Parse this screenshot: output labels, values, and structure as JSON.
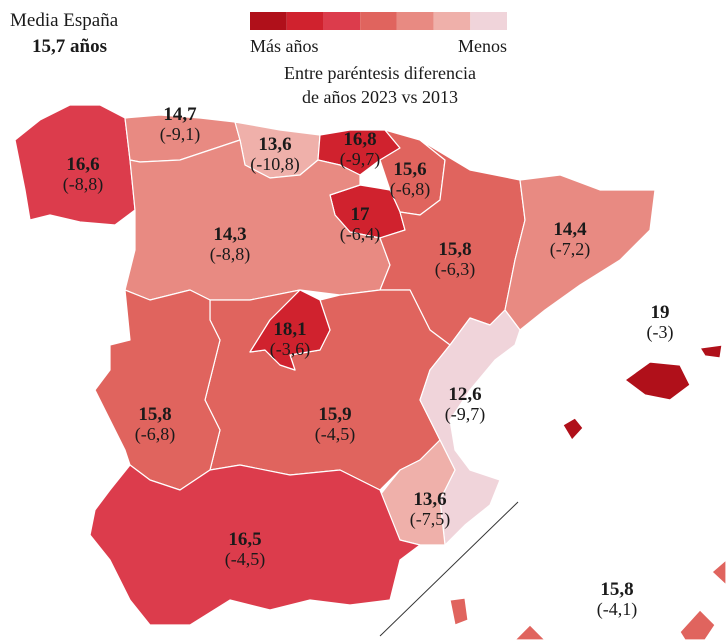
{
  "header": {
    "title": "Media España",
    "value": "15,7 años"
  },
  "legend": {
    "colors": [
      "#b0101a",
      "#d0222e",
      "#dc3c4c",
      "#e0645e",
      "#e88a82",
      "#efb0aa",
      "#f0d4da"
    ],
    "high": "Más años",
    "low": "Menos",
    "note": [
      "Entre paréntesis diferencia",
      "de años 2023 vs 2013"
    ]
  },
  "regions": [
    {
      "value": "16,6",
      "difference": "(-8,8)",
      "color": "#dc3c4c"
    },
    {
      "value": "14,7",
      "difference": "(-9,1)",
      "color": "#e88a82"
    },
    {
      "value": "13,6",
      "difference": "(-10,8)",
      "color": "#efb0aa"
    },
    {
      "value": "16,8",
      "difference": "(-9,7)",
      "color": "#d0222e"
    },
    {
      "value": "15,6",
      "difference": "(-6,8)",
      "color": "#e0645e"
    },
    {
      "value": "17",
      "difference": "(-6,4)",
      "color": "#d0222e"
    },
    {
      "value": "14,3",
      "difference": "(-8,8)",
      "color": "#e88a82"
    },
    {
      "value": "15,8",
      "difference": "(-6,3)",
      "color": "#e0645e"
    },
    {
      "value": "14,4",
      "difference": "(-7,2)",
      "color": "#e88a82"
    },
    {
      "value": "18,1",
      "difference": "(-3,6)",
      "color": "#d0222e"
    },
    {
      "value": "15,9",
      "difference": "(-4,5)",
      "color": "#e0645e"
    },
    {
      "value": "15,8",
      "difference": "(-6,8)",
      "color": "#e0645e"
    },
    {
      "value": "12,6",
      "difference": "(-9,7)",
      "color": "#f0d4da"
    },
    {
      "value": "13,6",
      "difference": "(-7,5)",
      "color": "#efb0aa"
    },
    {
      "value": "16,5",
      "difference": "(-4,5)",
      "color": "#dc3c4c"
    },
    {
      "value": "19",
      "difference": "(-3)",
      "color": "#b0101a"
    },
    {
      "value": "15,8",
      "difference": "(-4,1)",
      "color": "#e0645e"
    }
  ]
}
